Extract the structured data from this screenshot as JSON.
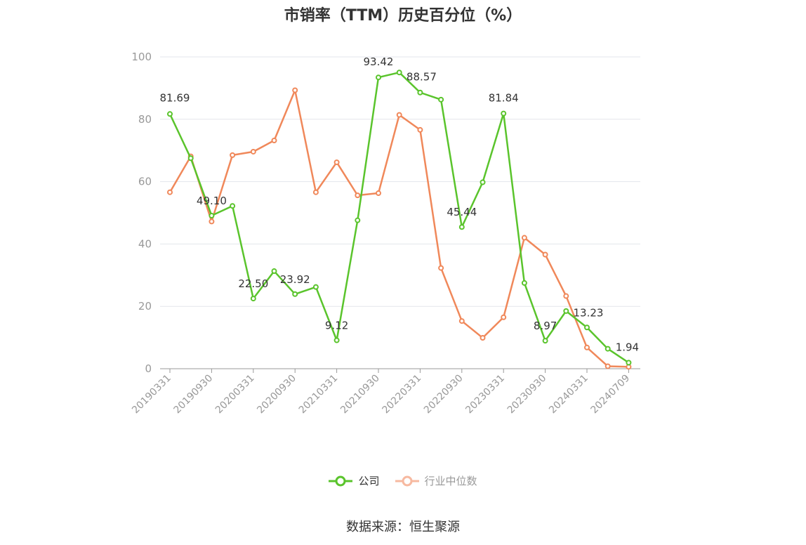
{
  "title": "市销率（TTM）历史百分位（%）",
  "source": "数据来源：恒生聚源",
  "colors": {
    "company": "#5ac42c",
    "industry": "#f0885a",
    "industry_legend": "#f7b9a0",
    "axis": "#999999",
    "grid": "#e3e6ec",
    "label": "#333333"
  },
  "legend": [
    {
      "name": "公司",
      "color": "#5ac42c"
    },
    {
      "name": "行业中位数",
      "color": "#f7b9a0"
    }
  ],
  "chart_data": {
    "type": "line",
    "title": "市销率（TTM）历史百分位（%）",
    "ylim": [
      0,
      100
    ],
    "yticks": [
      0,
      20,
      40,
      60,
      80,
      100
    ],
    "grid": true,
    "legend_position": "bottom",
    "x_tick_labels": [
      "20190331",
      "20190930",
      "20200331",
      "20200930",
      "20210331",
      "20210930",
      "20220331",
      "20220930",
      "20230331",
      "20230930",
      "20240331",
      "20240709"
    ],
    "x": [
      "20190331",
      "20190630",
      "20190930",
      "20191231",
      "20200331",
      "20200630",
      "20200930",
      "20201231",
      "20210331",
      "20210630",
      "20210930",
      "20211231",
      "20220331",
      "20220630",
      "20220930",
      "20221231",
      "20230331",
      "20230630",
      "20230930",
      "20231231",
      "20240331",
      "20240630",
      "20240709"
    ],
    "series": [
      {
        "name": "公司",
        "color": "#5ac42c",
        "values": [
          81.69,
          67.5,
          49.1,
          52.2,
          22.5,
          31.3,
          23.92,
          26.2,
          9.12,
          47.6,
          93.42,
          95.0,
          88.57,
          86.3,
          45.44,
          59.8,
          81.84,
          27.5,
          8.97,
          18.5,
          13.23,
          6.4,
          1.94
        ],
        "labels": {
          "0": "81.69",
          "2": "49.10",
          "4": "22.50",
          "6": "23.92",
          "8": "9.12",
          "10": "93.42",
          "12": "88.57",
          "14": "45.44",
          "16": "81.84",
          "18": "8.97",
          "20": "13.23",
          "22": "1.94"
        }
      },
      {
        "name": "行业中位数",
        "color": "#f0885a",
        "values": [
          56.6,
          68.1,
          47.2,
          68.5,
          69.6,
          73.2,
          89.3,
          56.6,
          66.2,
          55.6,
          56.3,
          81.4,
          76.6,
          32.3,
          15.3,
          9.9,
          16.5,
          42.0,
          36.6,
          23.3,
          6.8,
          0.8,
          0.6
        ]
      }
    ]
  }
}
